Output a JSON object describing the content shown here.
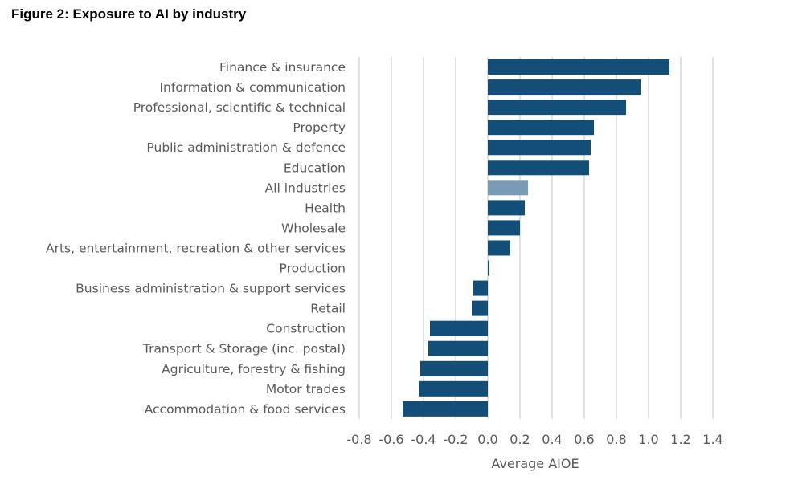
{
  "figure": {
    "title": "Figure 2: Exposure to AI by industry"
  },
  "chart_data": {
    "type": "bar",
    "orientation": "horizontal",
    "title": "Figure 2: Exposure to AI by industry",
    "xlabel": "Average AIOE",
    "ylabel": "",
    "xlim": [
      -0.8,
      1.4
    ],
    "xticks": [
      "-0.8",
      "-0.6",
      "-0.4",
      "-0.2",
      "0.0",
      "0.2",
      "0.4",
      "0.6",
      "0.8",
      "1.0",
      "1.2",
      "1.4"
    ],
    "grid": "vertical",
    "categories": [
      "Finance & insurance",
      "Information & communication",
      "Professional, scientific & technical",
      "Property",
      "Public administration & defence",
      "Education",
      "All industries",
      "Health",
      "Wholesale",
      "Arts, entertainment, recreation & other services",
      "Production",
      "Business administration & support services",
      "Retail",
      "Construction",
      "Transport & Storage (inc. postal)",
      "Agriculture, forestry & fishing",
      "Motor trades",
      "Accommodation & food services"
    ],
    "values": [
      1.13,
      0.95,
      0.86,
      0.66,
      0.64,
      0.63,
      0.25,
      0.23,
      0.2,
      0.14,
      0.01,
      -0.09,
      -0.1,
      -0.36,
      -0.37,
      -0.42,
      -0.43,
      -0.53
    ],
    "highlight": "All industries",
    "colors": {
      "bar": "#124e78",
      "highlight": "#7a9bb5",
      "grid": "#d9d9d9",
      "text": "#595959"
    }
  }
}
